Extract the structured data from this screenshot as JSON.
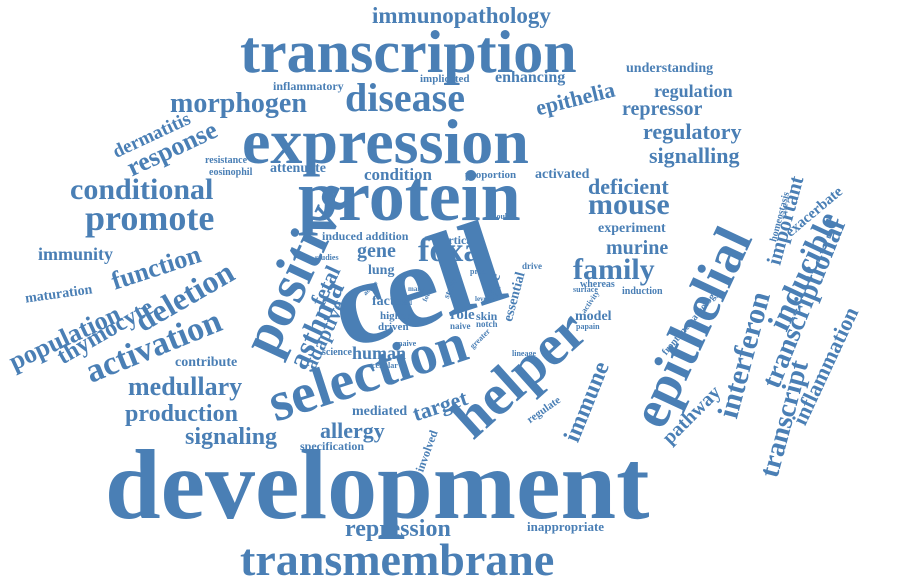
{
  "color": "#4a7fb5",
  "words": [
    "immunopathology",
    "transcription",
    "inflammatory",
    "implicated",
    "enhancing",
    "understanding",
    "regulation",
    "repressor",
    "morphogen",
    "disease",
    "epithelia",
    "expression",
    "regulatory",
    "dermatitis",
    "response",
    "signalling",
    "resistance",
    "eosinophil",
    "attenuate",
    "condition",
    "proportion",
    "activated",
    "conditional",
    "protein",
    "deficient",
    "mouse",
    "homeostasis",
    "exacerbate",
    "important",
    "promote",
    "positive",
    "experiment",
    "inducible",
    "induced addition",
    "cortical",
    "gene",
    "foxa",
    "immunity",
    "function",
    "murine",
    "transcriptional",
    "epithelial",
    "family",
    "deletion",
    "maturation",
    "fetal",
    "lung",
    "cell",
    "studies",
    "asthma",
    "drive",
    "whereas",
    "study",
    "type",
    "essential",
    "surface",
    "induction",
    "population",
    "thymocyte",
    "adaptive",
    "factor",
    "role",
    "skin",
    "higher",
    "notch",
    "activity",
    "model",
    "frontline pathology",
    "interferon",
    "activation",
    "driven",
    "naive",
    "papain",
    "inflammation",
    "contribute",
    "human",
    "science",
    "cellular",
    "greater",
    "helper",
    "lineage",
    "immune",
    "selection",
    "medullary",
    "mediated",
    "target",
    "production",
    "regulate",
    "pathway",
    "allergy",
    "signaling",
    "involved",
    "specification",
    "transcript",
    "development",
    "repression",
    "inappropriate",
    "transmembrane",
    "proc",
    "double",
    "level",
    "many",
    "found",
    "active",
    "cell",
    "naive"
  ]
}
